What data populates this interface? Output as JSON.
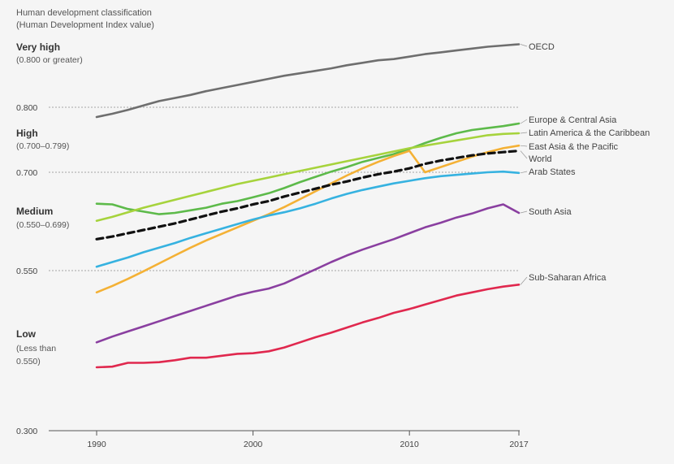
{
  "chart_data": {
    "type": "line",
    "title_lines": [
      "Human development classification",
      "(Human Development Index value)"
    ],
    "bands": [
      {
        "title": "Very high",
        "range_lines": [
          "(0.800 or greater)"
        ]
      },
      {
        "title": "High",
        "range_lines": [
          "(0.700–0.799)"
        ]
      },
      {
        "title": "Medium",
        "range_lines": [
          "(0.550–0.699)"
        ]
      },
      {
        "title": "Low",
        "range_lines": [
          "(Less than",
          "0.550)"
        ]
      }
    ],
    "y_ticks": [
      {
        "value": 0.8,
        "label": "0.800"
      },
      {
        "value": 0.7,
        "label": "0.700"
      },
      {
        "value": 0.55,
        "label": "0.550"
      },
      {
        "value": 0.3,
        "label": "0.300"
      }
    ],
    "x_ticks": [
      {
        "value": 1990,
        "label": "1990"
      },
      {
        "value": 2000,
        "label": "2000"
      },
      {
        "value": 2010,
        "label": "2010"
      },
      {
        "value": 2017,
        "label": "2017"
      }
    ],
    "xlim": [
      1990,
      2017
    ],
    "ylim": [
      0.3,
      0.9
    ],
    "grid": "dotted horizontal lines at 0.800, 0.700 and 0.550",
    "x": [
      1990,
      1991,
      1992,
      1993,
      1994,
      1995,
      1996,
      1997,
      1998,
      1999,
      2000,
      2001,
      2002,
      2003,
      2004,
      2005,
      2006,
      2007,
      2008,
      2009,
      2010,
      2011,
      2012,
      2013,
      2014,
      2015,
      2016,
      2017
    ],
    "series": [
      {
        "name": "OECD",
        "color": "#6e6e6e",
        "dashed": false,
        "values": [
          0.785,
          0.79,
          0.796,
          0.803,
          0.81,
          0.815,
          0.82,
          0.826,
          0.831,
          0.836,
          0.841,
          0.846,
          0.851,
          0.855,
          0.859,
          0.863,
          0.868,
          0.872,
          0.876,
          0.878,
          0.882,
          0.886,
          0.889,
          0.892,
          0.895,
          0.898,
          0.9,
          0.902
        ]
      },
      {
        "name": "Europe & Central Asia",
        "color": "#5dba4a",
        "dashed": false,
        "values": [
          0.652,
          0.651,
          0.644,
          0.64,
          0.636,
          0.638,
          0.642,
          0.646,
          0.652,
          0.656,
          0.662,
          0.668,
          0.676,
          0.685,
          0.693,
          0.701,
          0.708,
          0.716,
          0.722,
          0.728,
          0.736,
          0.745,
          0.753,
          0.76,
          0.765,
          0.768,
          0.771,
          0.775
        ]
      },
      {
        "name": "Latin America & the Caribbean",
        "color": "#a6d33c",
        "dashed": false,
        "values": [
          0.626,
          0.632,
          0.639,
          0.646,
          0.652,
          0.658,
          0.664,
          0.67,
          0.676,
          0.682,
          0.687,
          0.692,
          0.697,
          0.702,
          0.707,
          0.712,
          0.717,
          0.722,
          0.727,
          0.732,
          0.737,
          0.741,
          0.745,
          0.749,
          0.753,
          0.757,
          0.759,
          0.76
        ]
      },
      {
        "name": "East Asia & the Pacific",
        "color": "#f4b135",
        "dashed": false,
        "values": [
          0.516,
          0.526,
          0.537,
          0.549,
          0.561,
          0.573,
          0.585,
          0.596,
          0.606,
          0.616,
          0.626,
          0.636,
          0.647,
          0.659,
          0.671,
          0.683,
          0.695,
          0.706,
          0.716,
          0.725,
          0.733,
          0.7,
          0.708,
          0.716,
          0.724,
          0.731,
          0.737,
          0.741
        ]
      },
      {
        "name": "World",
        "color": "#111111",
        "dashed": true,
        "values": [
          0.598,
          0.602,
          0.607,
          0.612,
          0.617,
          0.622,
          0.628,
          0.634,
          0.64,
          0.645,
          0.651,
          0.656,
          0.663,
          0.669,
          0.675,
          0.681,
          0.686,
          0.692,
          0.697,
          0.701,
          0.706,
          0.713,
          0.718,
          0.722,
          0.726,
          0.729,
          0.731,
          0.733
        ]
      },
      {
        "name": "Arab States",
        "color": "#36b2e0",
        "dashed": false,
        "values": [
          0.556,
          0.563,
          0.57,
          0.578,
          0.585,
          0.592,
          0.6,
          0.607,
          0.614,
          0.621,
          0.628,
          0.634,
          0.639,
          0.645,
          0.652,
          0.66,
          0.667,
          0.673,
          0.678,
          0.683,
          0.687,
          0.691,
          0.694,
          0.696,
          0.698,
          0.7,
          0.701,
          0.699
        ]
      },
      {
        "name": "South Asia",
        "color": "#8a3fa0",
        "dashed": false,
        "values": [
          0.438,
          0.447,
          0.455,
          0.463,
          0.471,
          0.479,
          0.487,
          0.495,
          0.503,
          0.511,
          0.517,
          0.522,
          0.53,
          0.541,
          0.552,
          0.563,
          0.573,
          0.582,
          0.59,
          0.598,
          0.607,
          0.616,
          0.623,
          0.631,
          0.637,
          0.645,
          0.651,
          0.638
        ]
      },
      {
        "name": "Sub-Saharan Africa",
        "color": "#e0284e",
        "dashed": false,
        "values": [
          0.399,
          0.4,
          0.406,
          0.406,
          0.407,
          0.41,
          0.414,
          0.414,
          0.417,
          0.42,
          0.421,
          0.424,
          0.43,
          0.438,
          0.446,
          0.453,
          0.461,
          0.469,
          0.476,
          0.484,
          0.49,
          0.497,
          0.504,
          0.511,
          0.516,
          0.521,
          0.525,
          0.528
        ]
      }
    ]
  },
  "labels_left_note": "series names printed at right end of lines"
}
